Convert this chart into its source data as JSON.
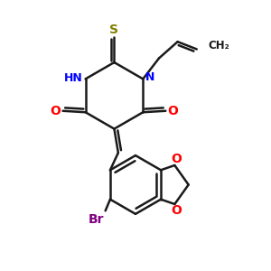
{
  "bg_color": "#ffffff",
  "bond_color": "#1a1a1a",
  "N_color": "#0000ff",
  "O_color": "#ff0000",
  "S_color": "#808000",
  "Br_color": "#800080",
  "linewidth": 1.8,
  "figsize": [
    3.0,
    3.0
  ],
  "dpi": 100,
  "xlim": [
    0,
    10
  ],
  "ylim": [
    0,
    10
  ]
}
